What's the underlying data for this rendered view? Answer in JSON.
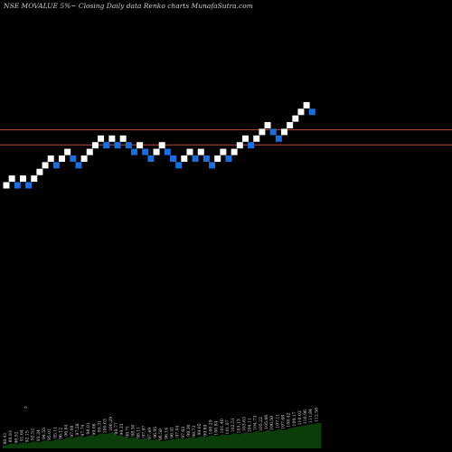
{
  "chart_data": {
    "type": "renko",
    "title": "NSE MOVALUE 5%~  Closing Daily data  Renko  charts MunafaSutra.com",
    "colors": {
      "background": "#000000",
      "up_brick": "#ffffff",
      "down_brick": "#1a6fe0",
      "support_resistance_line": "#b4503a",
      "volume_area": "#0a3d0a",
      "volume_label": "#d8d8d8"
    },
    "price_range": [
      70,
      125
    ],
    "reference_lines": [
      104.2,
      99.9
    ],
    "bricks": [
      {
        "value": 88.4,
        "dir": "up"
      },
      {
        "value": 90.3,
        "dir": "up"
      },
      {
        "value": 88.4,
        "dir": "down"
      },
      {
        "value": 90.3,
        "dir": "up"
      },
      {
        "value": 88.4,
        "dir": "down"
      },
      {
        "value": 90.3,
        "dir": "up"
      },
      {
        "value": 92.2,
        "dir": "up"
      },
      {
        "value": 94.1,
        "dir": "up"
      },
      {
        "value": 96.0,
        "dir": "up"
      },
      {
        "value": 94.1,
        "dir": "down"
      },
      {
        "value": 96.0,
        "dir": "up"
      },
      {
        "value": 97.9,
        "dir": "up"
      },
      {
        "value": 96.0,
        "dir": "down"
      },
      {
        "value": 94.1,
        "dir": "down"
      },
      {
        "value": 96.0,
        "dir": "up"
      },
      {
        "value": 97.9,
        "dir": "up"
      },
      {
        "value": 99.8,
        "dir": "up"
      },
      {
        "value": 101.7,
        "dir": "up"
      },
      {
        "value": 99.8,
        "dir": "down"
      },
      {
        "value": 101.7,
        "dir": "up"
      },
      {
        "value": 99.8,
        "dir": "down"
      },
      {
        "value": 101.7,
        "dir": "up"
      },
      {
        "value": 99.8,
        "dir": "down"
      },
      {
        "value": 97.9,
        "dir": "down"
      },
      {
        "value": 99.8,
        "dir": "up"
      },
      {
        "value": 97.9,
        "dir": "down"
      },
      {
        "value": 96.0,
        "dir": "down"
      },
      {
        "value": 97.9,
        "dir": "up"
      },
      {
        "value": 99.8,
        "dir": "up"
      },
      {
        "value": 97.9,
        "dir": "down"
      },
      {
        "value": 96.0,
        "dir": "down"
      },
      {
        "value": 94.1,
        "dir": "down"
      },
      {
        "value": 96.0,
        "dir": "up"
      },
      {
        "value": 97.9,
        "dir": "up"
      },
      {
        "value": 96.0,
        "dir": "down"
      },
      {
        "value": 97.9,
        "dir": "up"
      },
      {
        "value": 96.0,
        "dir": "down"
      },
      {
        "value": 94.1,
        "dir": "down"
      },
      {
        "value": 96.0,
        "dir": "up"
      },
      {
        "value": 97.9,
        "dir": "up"
      },
      {
        "value": 96.0,
        "dir": "down"
      },
      {
        "value": 97.9,
        "dir": "up"
      },
      {
        "value": 99.8,
        "dir": "up"
      },
      {
        "value": 101.7,
        "dir": "up"
      },
      {
        "value": 99.8,
        "dir": "down"
      },
      {
        "value": 101.7,
        "dir": "up"
      },
      {
        "value": 103.6,
        "dir": "up"
      },
      {
        "value": 105.5,
        "dir": "up"
      },
      {
        "value": 103.6,
        "dir": "down"
      },
      {
        "value": 101.7,
        "dir": "down"
      },
      {
        "value": 103.6,
        "dir": "up"
      },
      {
        "value": 105.5,
        "dir": "up"
      },
      {
        "value": 107.4,
        "dir": "up"
      },
      {
        "value": 109.3,
        "dir": "up"
      },
      {
        "value": 111.2,
        "dir": "up"
      },
      {
        "value": 109.3,
        "dir": "down"
      }
    ],
    "volume_labels": [
      "88.41",
      "89.93",
      "90.52",
      "91.64",
      "92.15",
      "92.52",
      "93.34",
      "94.55",
      "95.01",
      "95.11",
      "96.12",
      "96.84",
      "97.08",
      "97.28",
      "97.74",
      "98.01",
      "99.06",
      "99.31",
      "100.03",
      "100.29",
      "99.77",
      "99.33",
      "98.71",
      "98.30",
      "98.11",
      "97.97",
      "97.49",
      "96.95",
      "96.58",
      "96.14",
      "96.41",
      "97.04",
      "97.63",
      "98.30",
      "98.73",
      "99.05",
      "99.69",
      "100.29",
      "100.84",
      "101.40",
      "101.97",
      "102.51",
      "103.13",
      "103.63",
      "104.11",
      "104.73",
      "105.22",
      "105.86",
      "106.50",
      "107.11",
      "107.68",
      "108.42",
      "109.17",
      "110.03",
      "110.96",
      "111.84",
      "112.58"
    ],
    "volume_values": [
      3,
      5,
      4,
      6,
      5,
      7,
      6,
      8,
      7,
      9,
      8,
      11,
      10,
      12,
      11,
      13,
      12,
      15,
      14,
      16,
      13,
      12,
      10,
      11,
      9,
      10,
      8,
      9,
      7,
      8,
      9,
      10,
      9,
      11,
      10,
      12,
      11,
      13,
      12,
      14,
      13,
      15,
      14,
      16,
      15,
      17,
      16,
      18,
      17,
      19,
      18,
      20,
      21,
      22,
      23,
      24,
      25
    ],
    "volume_marker": "o"
  }
}
